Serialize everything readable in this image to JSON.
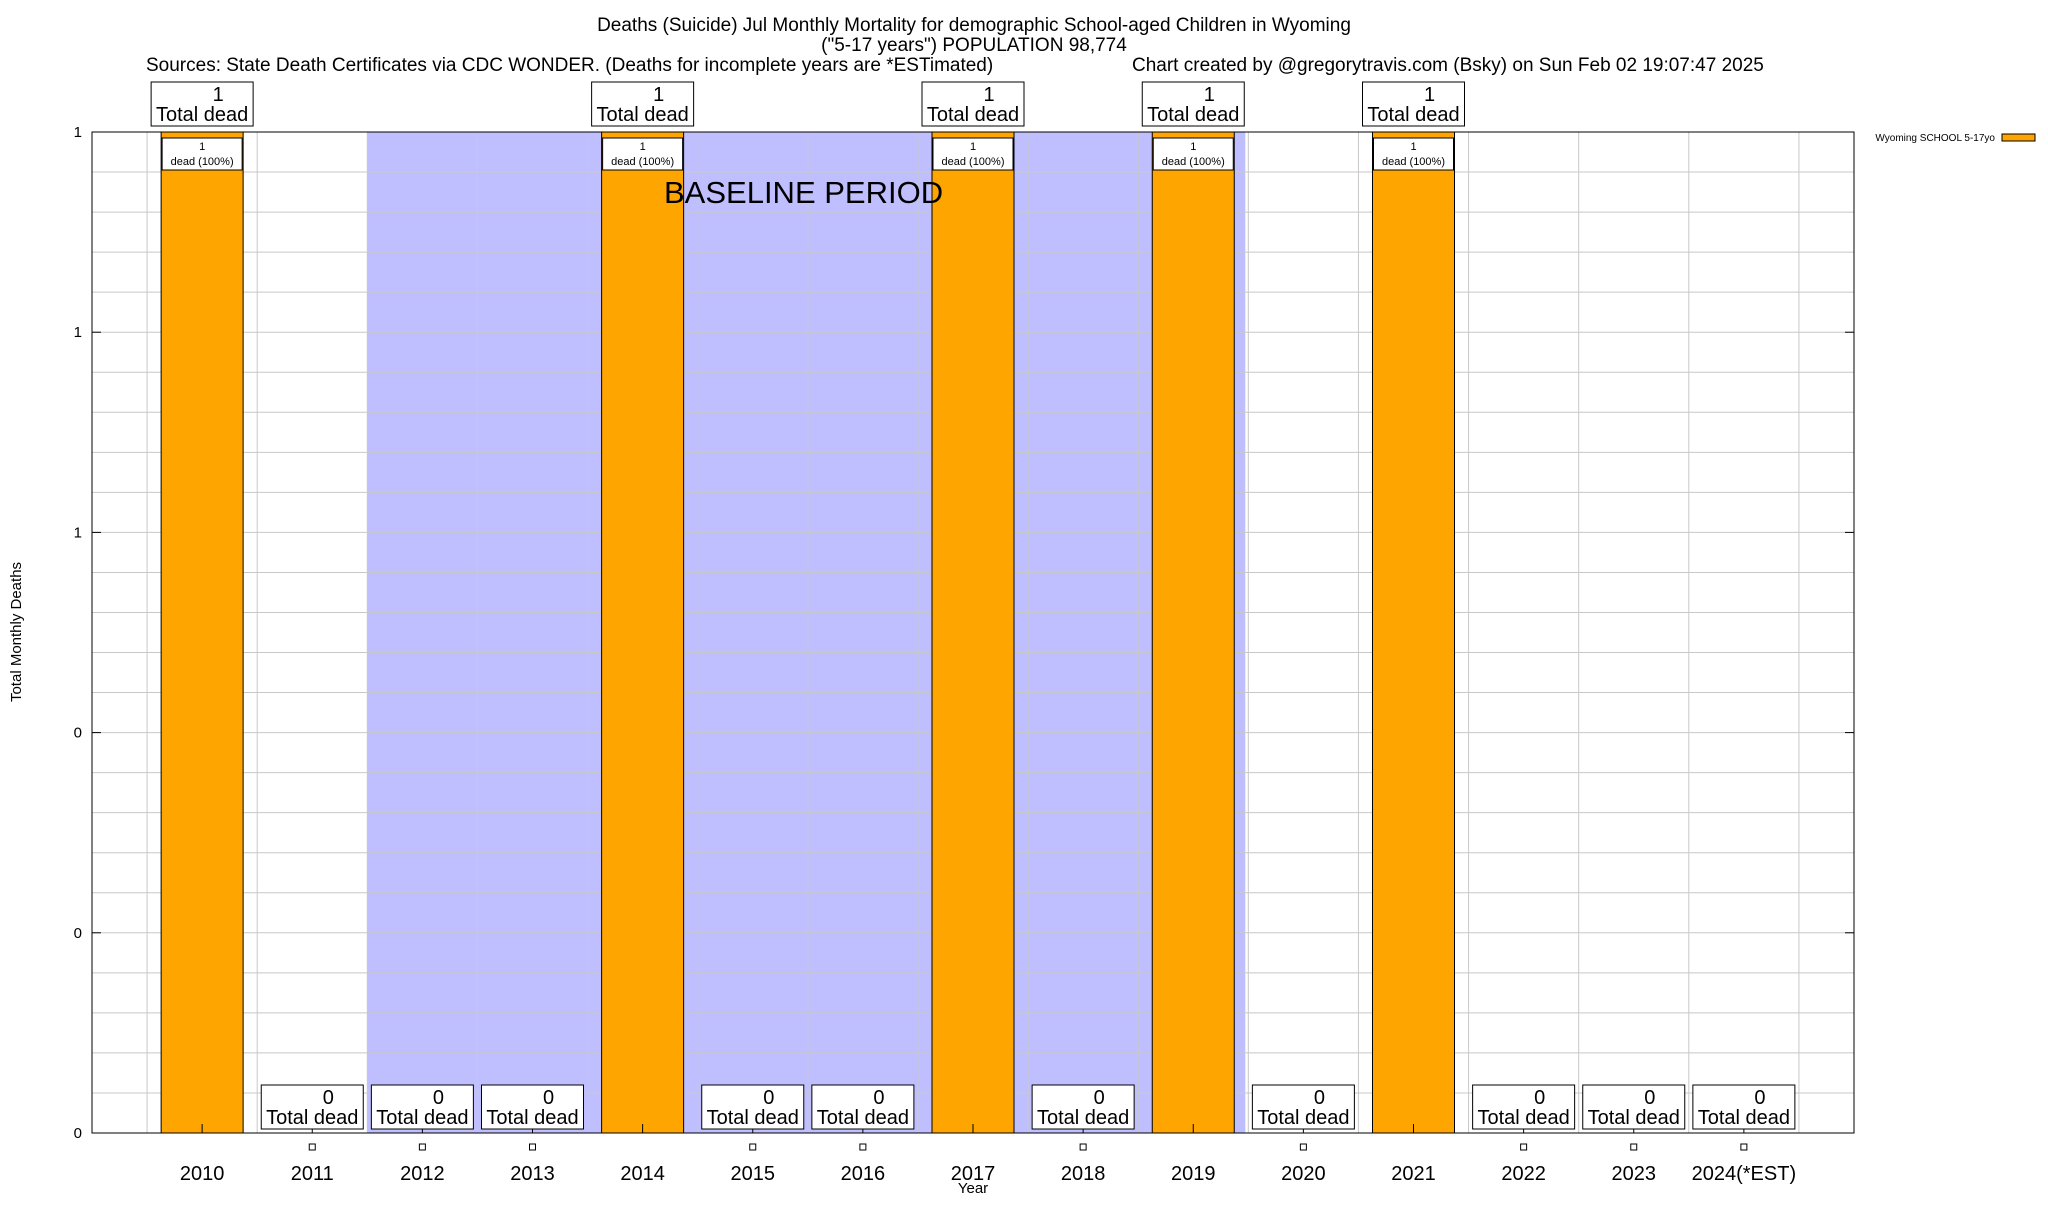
{
  "chart_data": {
    "type": "bar",
    "title": "Deaths (Suicide) Jul Monthly Mortality for demographic School-aged Children in Wyoming",
    "subtitle": "(\"5-17 years\") POPULATION 98,774",
    "sources": "Sources: State Death Certificates via CDC WONDER. (Deaths for incomplete years are *ESTimated)",
    "credit": "Chart created by @gregorytravis.com (Bsky) on Sun Feb 02 19:07:47 2025",
    "xlabel": "Year",
    "ylabel": "Total Monthly Deaths",
    "categories": [
      "2010",
      "2011",
      "2012",
      "2013",
      "2014",
      "2015",
      "2016",
      "2017",
      "2018",
      "2019",
      "2020",
      "2021",
      "2022",
      "2023",
      "2024(*EST)"
    ],
    "series": [
      {
        "name": "Wyoming SCHOOL 5-17yo",
        "color": "#ffa500",
        "values": [
          1,
          0,
          0,
          0,
          1,
          0,
          0,
          1,
          0,
          1,
          0,
          1,
          0,
          0,
          0
        ]
      }
    ],
    "ylim": [
      0,
      1
    ],
    "yticks": [
      {
        "value": 0,
        "label": "0"
      },
      {
        "value": 0.2,
        "label": "0"
      },
      {
        "value": 0.4,
        "label": "0"
      },
      {
        "value": 0.6,
        "label": "1"
      },
      {
        "value": 0.8,
        "label": "1"
      },
      {
        "value": 1,
        "label": "1"
      }
    ],
    "total_label_text": "Total dead",
    "bar_label_text": "dead (100%)",
    "baseline_period": {
      "label": "BASELINE PERIOD",
      "start_year": 2012,
      "end_year": 2019,
      "color": "#bfbfff"
    },
    "grid": true,
    "legend_position": "top-right"
  }
}
